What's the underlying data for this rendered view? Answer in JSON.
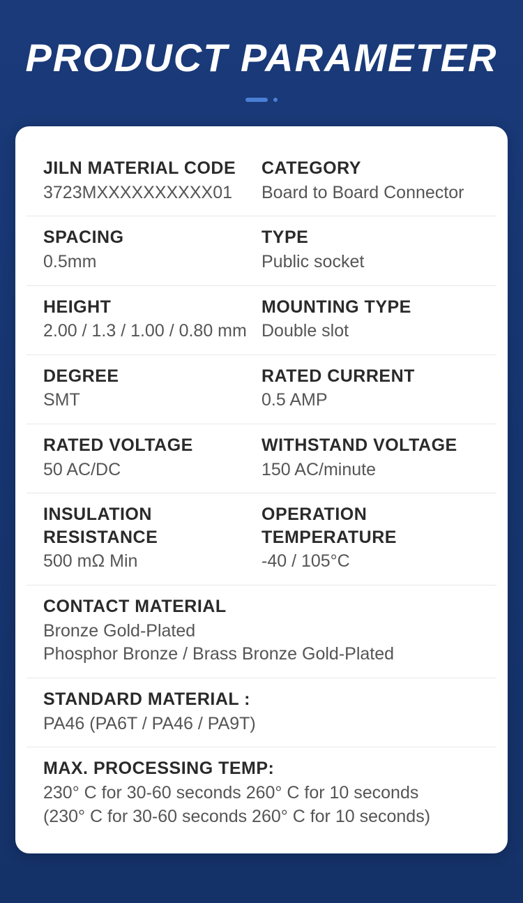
{
  "title": "PRODUCT PARAMETER",
  "rows": [
    {
      "left": {
        "label": "JILN MATERIAL CODE",
        "value": "3723MXXXXXXXXXX01"
      },
      "right": {
        "label": "CATEGORY",
        "value": "Board to Board Connector"
      }
    },
    {
      "left": {
        "label": "SPACING",
        "value": "0.5mm"
      },
      "right": {
        "label": "TYPE",
        "value": "Public socket"
      }
    },
    {
      "left": {
        "label": "HEIGHT",
        "value": "2.00 / 1.3 / 1.00 / 0.80 mm"
      },
      "right": {
        "label": "MOUNTING TYPE",
        "value": "Double slot"
      }
    },
    {
      "left": {
        "label": "DEGREE",
        "value": "SMT"
      },
      "right": {
        "label": "RATED CURRENT",
        "value": "0.5 AMP"
      }
    },
    {
      "left": {
        "label": "RATED VOLTAGE",
        "value": "50 AC/DC"
      },
      "right": {
        "label": "WITHSTAND VOLTAGE",
        "value": "150 AC/minute"
      }
    },
    {
      "left": {
        "label": "INSULATION RESISTANCE",
        "value": "500 mΩ Min"
      },
      "right": {
        "label": "OPERATION TEMPERATURE",
        "value": "-40 / 105°C"
      }
    },
    {
      "full": {
        "label": "CONTACT MATERIAL",
        "value": "Bronze Gold-Plated\nPhosphor Bronze / Brass Bronze Gold-Plated"
      }
    },
    {
      "full": {
        "label": "STANDARD MATERIAL :",
        "value": "PA46 (PA6T / PA46 / PA9T)"
      }
    },
    {
      "full": {
        "label": "MAX. PROCESSING TEMP:",
        "value": "230° C for 30-60 seconds    260° C for 10 seconds\n(230° C for 30-60 seconds    260° C for 10 seconds)"
      }
    }
  ],
  "colors": {
    "bg_top": "#1a3a7a",
    "bg_bottom": "#153268",
    "card_bg": "#ffffff",
    "accent": "#4a7fd6",
    "label_color": "#2a2a2a",
    "value_color": "#555555",
    "divider": "#e8e8e8"
  }
}
